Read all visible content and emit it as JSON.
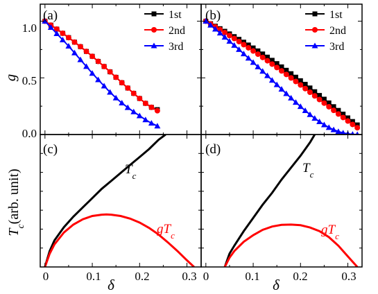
{
  "colors": {
    "first": "#000000",
    "second": "#ff0000",
    "third": "#0000ff",
    "tc": "#000000",
    "gtc": "#ff0000"
  },
  "chart_data": [
    {
      "panel": "(a)",
      "type": "line",
      "ylabel": "g",
      "xlabel": "",
      "xlim": [
        -0.01,
        0.33
      ],
      "ylim": [
        0,
        1.15
      ],
      "yticks": [
        "0.0",
        "0.5",
        "1.0"
      ],
      "legend": [
        "1st",
        "2nd",
        "3rd"
      ],
      "legend_position": "top-right",
      "series": [
        {
          "name": "1st",
          "marker": "square",
          "x": [
            0,
            0.0125,
            0.025,
            0.0375,
            0.05,
            0.0625,
            0.075,
            0.0875,
            0.1,
            0.1125,
            0.125,
            0.1375,
            0.15,
            0.1625,
            0.175,
            0.1875,
            0.2,
            0.2125,
            0.225,
            0.2375
          ],
          "y": [
            1.0,
            0.965,
            0.93,
            0.893,
            0.855,
            0.815,
            0.775,
            0.733,
            0.69,
            0.645,
            0.6,
            0.553,
            0.505,
            0.457,
            0.41,
            0.363,
            0.318,
            0.275,
            0.24,
            0.22
          ]
        },
        {
          "name": "2nd",
          "marker": "circle",
          "x": [
            0,
            0.0125,
            0.025,
            0.0375,
            0.05,
            0.0625,
            0.075,
            0.0875,
            0.1,
            0.1125,
            0.125,
            0.1375,
            0.15,
            0.1625,
            0.175,
            0.1875,
            0.2,
            0.2125,
            0.225,
            0.2375
          ],
          "y": [
            1.0,
            0.965,
            0.93,
            0.893,
            0.855,
            0.815,
            0.775,
            0.733,
            0.69,
            0.645,
            0.6,
            0.553,
            0.505,
            0.457,
            0.41,
            0.363,
            0.318,
            0.275,
            0.24,
            0.21
          ]
        },
        {
          "name": "3rd",
          "marker": "triangle",
          "x": [
            0,
            0.0125,
            0.025,
            0.0375,
            0.05,
            0.0625,
            0.075,
            0.0875,
            0.1,
            0.1125,
            0.125,
            0.1375,
            0.15,
            0.1625,
            0.175,
            0.1875,
            0.2,
            0.2125,
            0.225,
            0.2375
          ],
          "y": [
            1.0,
            0.945,
            0.89,
            0.835,
            0.78,
            0.72,
            0.66,
            0.6,
            0.54,
            0.483,
            0.428,
            0.373,
            0.323,
            0.278,
            0.238,
            0.2,
            0.165,
            0.13,
            0.1,
            0.075
          ]
        }
      ]
    },
    {
      "panel": "(b)",
      "type": "line",
      "xlim": [
        -0.01,
        0.33
      ],
      "ylim": [
        0,
        1.15
      ],
      "legend": [
        "1st",
        "2nd",
        "3rd"
      ],
      "legend_position": "top-right",
      "series": [
        {
          "name": "1st",
          "marker": "square",
          "x": [
            0,
            0.01,
            0.02,
            0.03,
            0.04,
            0.05,
            0.06,
            0.07,
            0.08,
            0.09,
            0.1,
            0.11,
            0.12,
            0.13,
            0.14,
            0.15,
            0.16,
            0.17,
            0.18,
            0.19,
            0.2,
            0.21,
            0.22,
            0.23,
            0.24,
            0.25,
            0.26,
            0.27,
            0.28,
            0.29,
            0.3,
            0.31,
            0.32
          ],
          "y": [
            1.0,
            0.978,
            0.956,
            0.934,
            0.911,
            0.888,
            0.864,
            0.84,
            0.815,
            0.79,
            0.764,
            0.738,
            0.711,
            0.683,
            0.655,
            0.626,
            0.597,
            0.567,
            0.537,
            0.506,
            0.475,
            0.443,
            0.411,
            0.378,
            0.345,
            0.312,
            0.279,
            0.246,
            0.213,
            0.18,
            0.147,
            0.115,
            0.085
          ]
        },
        {
          "name": "2nd",
          "marker": "circle",
          "x": [
            0,
            0.01,
            0.02,
            0.03,
            0.04,
            0.05,
            0.06,
            0.07,
            0.08,
            0.09,
            0.1,
            0.11,
            0.12,
            0.13,
            0.14,
            0.15,
            0.16,
            0.17,
            0.18,
            0.19,
            0.2,
            0.21,
            0.22,
            0.23,
            0.24,
            0.25,
            0.26,
            0.27,
            0.28,
            0.29,
            0.3,
            0.31,
            0.32
          ],
          "y": [
            1.0,
            0.975,
            0.95,
            0.925,
            0.899,
            0.873,
            0.847,
            0.82,
            0.793,
            0.765,
            0.737,
            0.709,
            0.68,
            0.651,
            0.621,
            0.591,
            0.561,
            0.53,
            0.499,
            0.468,
            0.437,
            0.405,
            0.373,
            0.341,
            0.309,
            0.277,
            0.245,
            0.213,
            0.181,
            0.15,
            0.119,
            0.089,
            0.06
          ]
        },
        {
          "name": "3rd",
          "marker": "triangle",
          "x": [
            0,
            0.01,
            0.02,
            0.03,
            0.04,
            0.05,
            0.06,
            0.07,
            0.08,
            0.09,
            0.1,
            0.11,
            0.12,
            0.13,
            0.14,
            0.15,
            0.16,
            0.17,
            0.18,
            0.19,
            0.2,
            0.21,
            0.22,
            0.23,
            0.24,
            0.25,
            0.26,
            0.27,
            0.28,
            0.29,
            0.3,
            0.31,
            0.32
          ],
          "y": [
            1.0,
            0.965,
            0.93,
            0.895,
            0.859,
            0.823,
            0.787,
            0.75,
            0.712,
            0.674,
            0.636,
            0.597,
            0.558,
            0.519,
            0.479,
            0.44,
            0.4,
            0.361,
            0.322,
            0.284,
            0.247,
            0.211,
            0.176,
            0.143,
            0.113,
            0.086,
            0.062,
            0.042,
            0.026,
            0.014,
            0.006,
            0.002,
            0.0
          ]
        }
      ]
    },
    {
      "panel": "(c)",
      "type": "line",
      "ylabel": "T_c (arb. unit)",
      "xlabel": "δ",
      "xlim": [
        -0.01,
        0.33
      ],
      "ylim": [
        0,
        1.0
      ],
      "xticks": [
        "0",
        "0.1",
        "0.2",
        "0.3"
      ],
      "curve_labels": {
        "tc": "T",
        "gtc": "gT",
        "sub": "c"
      },
      "series": [
        {
          "name": "Tc",
          "x": [
            0,
            0.01,
            0.02,
            0.04,
            0.06,
            0.08,
            0.1,
            0.12,
            0.14,
            0.16,
            0.18,
            0.2,
            0.22,
            0.24,
            0.255
          ],
          "y": [
            0.0,
            0.12,
            0.2,
            0.3,
            0.38,
            0.45,
            0.52,
            0.59,
            0.65,
            0.71,
            0.77,
            0.83,
            0.89,
            0.96,
            1.0
          ]
        },
        {
          "name": "gTc",
          "x": [
            0,
            0.01,
            0.02,
            0.04,
            0.06,
            0.08,
            0.1,
            0.12,
            0.13,
            0.14,
            0.16,
            0.18,
            0.2,
            0.22,
            0.24,
            0.26,
            0.28,
            0.3,
            0.315
          ],
          "y": [
            0.0,
            0.1,
            0.17,
            0.26,
            0.32,
            0.36,
            0.385,
            0.395,
            0.397,
            0.395,
            0.385,
            0.365,
            0.335,
            0.295,
            0.245,
            0.185,
            0.12,
            0.05,
            0.0
          ]
        }
      ]
    },
    {
      "panel": "(d)",
      "type": "line",
      "xlabel": "δ",
      "xlim": [
        -0.01,
        0.33
      ],
      "ylim": [
        0,
        1.0
      ],
      "xticks": [
        "0",
        "0.1",
        "0.2",
        "0.3"
      ],
      "curve_labels": {
        "tc": "T",
        "gtc": "gT",
        "sub": "c"
      },
      "series": [
        {
          "name": "Tc",
          "x": [
            0.04,
            0.045,
            0.05,
            0.06,
            0.08,
            0.1,
            0.12,
            0.14,
            0.16,
            0.18,
            0.2,
            0.22,
            0.23
          ],
          "y": [
            0.0,
            0.05,
            0.1,
            0.16,
            0.27,
            0.37,
            0.47,
            0.56,
            0.66,
            0.75,
            0.84,
            0.94,
            1.0
          ]
        },
        {
          "name": "gTc",
          "x": [
            0.04,
            0.05,
            0.06,
            0.08,
            0.1,
            0.12,
            0.14,
            0.16,
            0.18,
            0.2,
            0.22,
            0.24,
            0.26,
            0.28,
            0.3,
            0.32
          ],
          "y": [
            0.0,
            0.07,
            0.12,
            0.19,
            0.24,
            0.28,
            0.305,
            0.318,
            0.32,
            0.315,
            0.298,
            0.27,
            0.225,
            0.16,
            0.08,
            0.0
          ]
        }
      ]
    }
  ]
}
